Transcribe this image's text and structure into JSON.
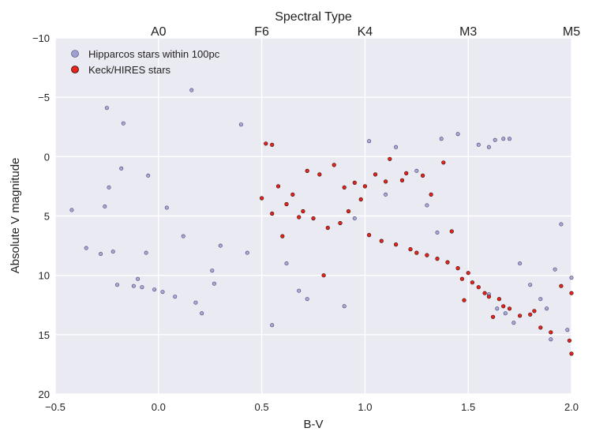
{
  "chart_data": {
    "type": "scatter",
    "title": "Spectral Type",
    "xlabel": "B-V",
    "ylabel": "Absolute V magnitude",
    "xlim": [
      -0.5,
      2.0
    ],
    "ylim": [
      20,
      -10
    ],
    "y_inverted": true,
    "grid": true,
    "legend_position": "top-left",
    "x_ticks": [
      "−0.5",
      "0.0",
      "0.5",
      "1.0",
      "1.5",
      "2.0"
    ],
    "x_tick_values": [
      -0.5,
      0.0,
      0.5,
      1.0,
      1.5,
      2.0
    ],
    "y_ticks": [
      "−10",
      "−5",
      "0",
      "5",
      "10",
      "15",
      "20"
    ],
    "y_tick_values": [
      -10,
      -5,
      0,
      5,
      10,
      15,
      20
    ],
    "top_axis": {
      "ticks": [
        "A0",
        "F6",
        "K4",
        "M3",
        "M5"
      ],
      "tick_values": [
        0.0,
        0.5,
        1.0,
        1.5,
        2.0
      ]
    },
    "series": [
      {
        "name": "Hipparcos stars within 100pc",
        "color": "#9f9fd0",
        "edge_color": "#3b3b6e",
        "marker": "circle",
        "points": [
          [
            -0.42,
            4.5
          ],
          [
            -0.35,
            7.7
          ],
          [
            -0.28,
            8.2
          ],
          [
            -0.26,
            4.2
          ],
          [
            -0.25,
            -4.1
          ],
          [
            -0.24,
            2.6
          ],
          [
            -0.22,
            8.0
          ],
          [
            -0.2,
            10.8
          ],
          [
            -0.18,
            1.0
          ],
          [
            -0.17,
            -2.8
          ],
          [
            -0.12,
            10.9
          ],
          [
            -0.1,
            10.3
          ],
          [
            -0.08,
            11.0
          ],
          [
            -0.06,
            8.1
          ],
          [
            -0.05,
            1.6
          ],
          [
            -0.02,
            11.2
          ],
          [
            0.02,
            11.4
          ],
          [
            0.04,
            4.3
          ],
          [
            0.08,
            11.8
          ],
          [
            0.12,
            6.7
          ],
          [
            0.16,
            -5.6
          ],
          [
            0.18,
            12.3
          ],
          [
            0.21,
            13.2
          ],
          [
            0.26,
            9.6
          ],
          [
            0.27,
            10.7
          ],
          [
            0.3,
            7.5
          ],
          [
            0.4,
            -2.7
          ],
          [
            0.43,
            8.1
          ],
          [
            0.55,
            14.2
          ],
          [
            0.68,
            11.3
          ],
          [
            0.72,
            12.0
          ],
          [
            0.9,
            12.6
          ],
          [
            1.02,
            -1.3
          ],
          [
            1.15,
            -0.8
          ],
          [
            1.25,
            1.2
          ],
          [
            1.37,
            -1.5
          ],
          [
            1.45,
            -1.9
          ],
          [
            1.55,
            -1.0
          ],
          [
            1.6,
            -0.8
          ],
          [
            1.63,
            -1.4
          ],
          [
            1.67,
            -1.5
          ],
          [
            1.7,
            -1.5
          ],
          [
            1.75,
            9.0
          ],
          [
            1.8,
            10.8
          ],
          [
            1.85,
            12.0
          ],
          [
            1.88,
            12.8
          ],
          [
            1.9,
            15.4
          ],
          [
            1.92,
            9.5
          ],
          [
            1.95,
            5.7
          ],
          [
            2.0,
            10.2
          ],
          [
            1.98,
            14.6
          ],
          [
            1.6,
            11.6
          ],
          [
            1.64,
            12.8
          ],
          [
            1.68,
            13.2
          ],
          [
            1.72,
            14.0
          ],
          [
            1.35,
            6.4
          ],
          [
            1.3,
            4.1
          ],
          [
            1.1,
            3.2
          ],
          [
            0.95,
            5.2
          ],
          [
            0.62,
            9.0
          ]
        ]
      },
      {
        "name": "Keck/HIRES stars",
        "color": "#e8231c",
        "edge_color": "#2a0a0a",
        "marker": "circle",
        "points": [
          [
            0.5,
            3.5
          ],
          [
            0.52,
            -1.1
          ],
          [
            0.55,
            -1.0
          ],
          [
            0.55,
            4.8
          ],
          [
            0.58,
            2.5
          ],
          [
            0.6,
            6.7
          ],
          [
            0.62,
            4.0
          ],
          [
            0.65,
            3.2
          ],
          [
            0.68,
            5.1
          ],
          [
            0.7,
            4.6
          ],
          [
            0.72,
            1.2
          ],
          [
            0.75,
            5.2
          ],
          [
            0.78,
            1.5
          ],
          [
            0.8,
            10.0
          ],
          [
            0.82,
            6.0
          ],
          [
            0.85,
            0.7
          ],
          [
            0.88,
            5.6
          ],
          [
            0.9,
            2.6
          ],
          [
            0.92,
            4.6
          ],
          [
            0.95,
            2.2
          ],
          [
            0.98,
            3.6
          ],
          [
            1.0,
            2.5
          ],
          [
            1.02,
            6.6
          ],
          [
            1.05,
            1.5
          ],
          [
            1.08,
            7.1
          ],
          [
            1.1,
            2.1
          ],
          [
            1.12,
            0.2
          ],
          [
            1.15,
            7.4
          ],
          [
            1.18,
            2.0
          ],
          [
            1.2,
            1.4
          ],
          [
            1.22,
            7.8
          ],
          [
            1.25,
            8.1
          ],
          [
            1.28,
            1.6
          ],
          [
            1.3,
            8.3
          ],
          [
            1.32,
            3.2
          ],
          [
            1.35,
            8.6
          ],
          [
            1.38,
            0.5
          ],
          [
            1.4,
            8.9
          ],
          [
            1.42,
            6.3
          ],
          [
            1.45,
            9.4
          ],
          [
            1.47,
            10.3
          ],
          [
            1.48,
            12.1
          ],
          [
            1.5,
            9.8
          ],
          [
            1.52,
            10.6
          ],
          [
            1.55,
            11.0
          ],
          [
            1.58,
            11.5
          ],
          [
            1.6,
            11.8
          ],
          [
            1.62,
            13.5
          ],
          [
            1.65,
            12.0
          ],
          [
            1.67,
            12.6
          ],
          [
            1.7,
            12.8
          ],
          [
            1.75,
            13.4
          ],
          [
            1.8,
            13.3
          ],
          [
            1.82,
            13.0
          ],
          [
            1.85,
            14.4
          ],
          [
            1.9,
            14.8
          ],
          [
            1.95,
            10.9
          ],
          [
            1.99,
            15.5
          ],
          [
            2.0,
            11.5
          ],
          [
            2.0,
            16.6
          ]
        ]
      }
    ]
  }
}
